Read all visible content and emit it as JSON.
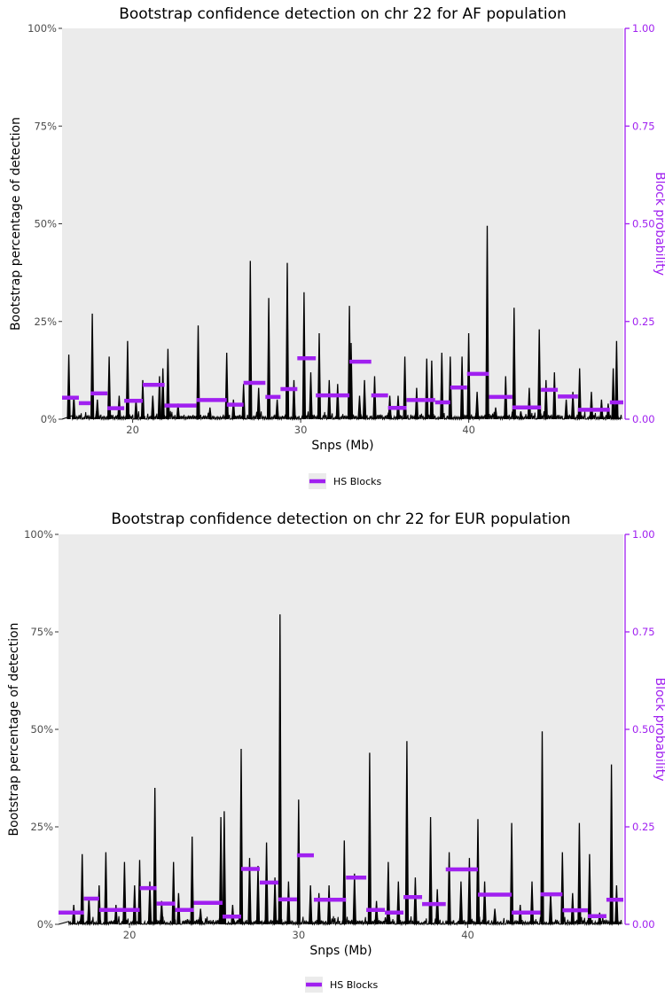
{
  "chart_data": [
    {
      "type": "line",
      "title": "Bootstrap confidence detection on chr 22 for AF population",
      "xlabel": "Snps (Mb)",
      "ylabel": "Bootstrap percentage of detection",
      "y2label": "Block probability",
      "xlim": [
        15.8,
        49.2
      ],
      "xticks": [
        20,
        30,
        40
      ],
      "ylim": [
        0,
        100
      ],
      "yticks": [
        "0%",
        "25%",
        "50%",
        "75%",
        "100%"
      ],
      "y2lim": [
        0,
        1
      ],
      "y2ticks": [
        "0.00",
        "0.25",
        "0.50",
        "0.75",
        "1.00"
      ],
      "legend": {
        "position": "bottom",
        "label": "HS Blocks"
      },
      "colors": {
        "line": "#000000",
        "blocks": "#a020f0",
        "panel": "#ebebeb"
      },
      "series": [
        {
          "values": [
            [
              16.2,
              16.5
            ],
            [
              16.5,
              6
            ],
            [
              17.6,
              27
            ],
            [
              17.9,
              5
            ],
            [
              18.6,
              16
            ],
            [
              19.2,
              6
            ],
            [
              19.7,
              20
            ],
            [
              20.2,
              5
            ],
            [
              20.6,
              10
            ],
            [
              21.2,
              6
            ],
            [
              21.6,
              11
            ],
            [
              21.8,
              13
            ],
            [
              22.1,
              18
            ],
            [
              22.7,
              4
            ],
            [
              23.9,
              24
            ],
            [
              24.6,
              3
            ],
            [
              25.6,
              17
            ],
            [
              26.0,
              5
            ],
            [
              26.6,
              9
            ],
            [
              27.0,
              40.5
            ],
            [
              27.5,
              8
            ],
            [
              28.1,
              31
            ],
            [
              28.6,
              5
            ],
            [
              29.2,
              40
            ],
            [
              29.6,
              10
            ],
            [
              30.2,
              32.5
            ],
            [
              30.6,
              12
            ],
            [
              31.1,
              22
            ],
            [
              31.7,
              10
            ],
            [
              32.2,
              9
            ],
            [
              32.9,
              29
            ],
            [
              33.0,
              19.5
            ],
            [
              33.5,
              6
            ],
            [
              33.8,
              10
            ],
            [
              34.4,
              11
            ],
            [
              35.3,
              6
            ],
            [
              35.8,
              6
            ],
            [
              36.2,
              16
            ],
            [
              36.9,
              8
            ],
            [
              37.5,
              15.5
            ],
            [
              37.8,
              15
            ],
            [
              38.4,
              17
            ],
            [
              38.9,
              16
            ],
            [
              39.6,
              16
            ],
            [
              40.0,
              22
            ],
            [
              40.5,
              7
            ],
            [
              41.1,
              49.5
            ],
            [
              41.6,
              3
            ],
            [
              42.2,
              11
            ],
            [
              42.7,
              28.5
            ],
            [
              43.1,
              2
            ],
            [
              43.6,
              8
            ],
            [
              44.2,
              23
            ],
            [
              44.6,
              10
            ],
            [
              45.1,
              12
            ],
            [
              45.8,
              5
            ],
            [
              46.2,
              7
            ],
            [
              46.6,
              13
            ],
            [
              47.3,
              7
            ],
            [
              47.9,
              5
            ],
            [
              48.3,
              4
            ],
            [
              48.6,
              13
            ],
            [
              48.8,
              20
            ]
          ]
        }
      ],
      "blocks": [
        [
          15.8,
          16.8,
          0.055
        ],
        [
          16.8,
          17.5,
          0.041
        ],
        [
          17.5,
          18.5,
          0.066
        ],
        [
          18.5,
          19.5,
          0.028
        ],
        [
          19.5,
          20.6,
          0.047
        ],
        [
          20.6,
          21.9,
          0.088
        ],
        [
          21.9,
          23.8,
          0.035
        ],
        [
          23.8,
          25.6,
          0.049
        ],
        [
          25.6,
          26.6,
          0.037
        ],
        [
          26.6,
          27.9,
          0.093
        ],
        [
          27.9,
          28.8,
          0.057
        ],
        [
          28.8,
          29.8,
          0.077
        ],
        [
          29.8,
          30.9,
          0.156
        ],
        [
          30.9,
          32.9,
          0.061
        ],
        [
          32.9,
          34.2,
          0.147
        ],
        [
          34.2,
          35.2,
          0.061
        ],
        [
          35.2,
          36.3,
          0.029
        ],
        [
          36.3,
          37.4,
          0.049
        ],
        [
          37.4,
          38.0,
          0.049
        ],
        [
          38.0,
          38.9,
          0.043
        ],
        [
          38.9,
          39.9,
          0.081
        ],
        [
          39.9,
          41.2,
          0.116
        ],
        [
          41.2,
          42.6,
          0.057
        ],
        [
          42.6,
          44.3,
          0.03
        ],
        [
          44.3,
          45.3,
          0.075
        ],
        [
          45.3,
          46.5,
          0.058
        ],
        [
          46.5,
          48.4,
          0.024
        ],
        [
          48.4,
          49.2,
          0.043
        ]
      ]
    },
    {
      "type": "line",
      "title": "Bootstrap confidence detection on chr 22 for EUR population",
      "xlabel": "Snps (Mb)",
      "ylabel": "Bootstrap percentage of detection",
      "y2label": "Block probability",
      "xlim": [
        15.8,
        49.2
      ],
      "xticks": [
        20,
        30,
        40
      ],
      "ylim": [
        0,
        100
      ],
      "yticks": [
        "0%",
        "25%",
        "50%",
        "75%",
        "100%"
      ],
      "y2lim": [
        0,
        1
      ],
      "y2ticks": [
        "0.00",
        "0.25",
        "0.50",
        "0.75",
        "1.00"
      ],
      "legend": {
        "position": "bottom",
        "label": "HS Blocks"
      },
      "colors": {
        "line": "#000000",
        "blocks": "#a020f0",
        "panel": "#ebebeb"
      },
      "series": [
        {
          "values": [
            [
              16.7,
              5
            ],
            [
              17.2,
              18
            ],
            [
              17.6,
              7
            ],
            [
              18.2,
              10
            ],
            [
              18.6,
              18.5
            ],
            [
              19.2,
              5
            ],
            [
              19.7,
              16
            ],
            [
              20.3,
              10
            ],
            [
              20.6,
              16.5
            ],
            [
              21.2,
              11
            ],
            [
              21.5,
              35
            ],
            [
              21.9,
              6
            ],
            [
              22.6,
              16
            ],
            [
              22.9,
              8
            ],
            [
              23.7,
              22.5
            ],
            [
              24.2,
              4
            ],
            [
              25.4,
              27.5
            ],
            [
              25.6,
              29
            ],
            [
              26.1,
              5
            ],
            [
              26.6,
              45
            ],
            [
              27.1,
              17
            ],
            [
              27.6,
              15
            ],
            [
              28.1,
              21
            ],
            [
              28.6,
              12
            ],
            [
              28.9,
              79.5
            ],
            [
              29.4,
              11
            ],
            [
              30.0,
              32
            ],
            [
              30.7,
              10
            ],
            [
              31.2,
              8
            ],
            [
              31.8,
              10
            ],
            [
              32.7,
              21.5
            ],
            [
              33.3,
              13
            ],
            [
              34.2,
              44
            ],
            [
              34.6,
              6
            ],
            [
              35.3,
              16
            ],
            [
              35.9,
              11
            ],
            [
              36.4,
              47
            ],
            [
              36.9,
              12
            ],
            [
              37.8,
              27.5
            ],
            [
              38.2,
              9
            ],
            [
              38.9,
              18.5
            ],
            [
              39.6,
              11
            ],
            [
              40.1,
              17
            ],
            [
              40.6,
              27
            ],
            [
              41.0,
              11
            ],
            [
              41.6,
              4
            ],
            [
              42.6,
              26
            ],
            [
              43.1,
              5
            ],
            [
              43.8,
              11
            ],
            [
              44.4,
              49.5
            ],
            [
              44.9,
              8
            ],
            [
              45.6,
              18.5
            ],
            [
              46.2,
              8
            ],
            [
              46.6,
              26
            ],
            [
              47.2,
              18
            ],
            [
              47.8,
              3
            ],
            [
              48.5,
              41
            ],
            [
              48.8,
              10
            ]
          ]
        }
      ],
      "blocks": [
        [
          15.8,
          17.3,
          0.03
        ],
        [
          17.3,
          18.2,
          0.066
        ],
        [
          18.2,
          20.6,
          0.037
        ],
        [
          20.6,
          21.6,
          0.093
        ],
        [
          21.6,
          22.7,
          0.053
        ],
        [
          22.7,
          23.8,
          0.037
        ],
        [
          23.8,
          25.5,
          0.055
        ],
        [
          25.5,
          26.6,
          0.02
        ],
        [
          26.6,
          27.7,
          0.142
        ],
        [
          27.7,
          28.8,
          0.107
        ],
        [
          28.8,
          29.9,
          0.064
        ],
        [
          29.9,
          30.9,
          0.177
        ],
        [
          30.9,
          32.8,
          0.063
        ],
        [
          32.8,
          34.0,
          0.12
        ],
        [
          34.0,
          35.1,
          0.037
        ],
        [
          35.1,
          36.2,
          0.03
        ],
        [
          36.2,
          37.3,
          0.07
        ],
        [
          37.3,
          38.7,
          0.052
        ],
        [
          38.7,
          40.6,
          0.141
        ],
        [
          40.6,
          42.6,
          0.076
        ],
        [
          42.6,
          44.3,
          0.03
        ],
        [
          44.3,
          45.6,
          0.077
        ],
        [
          45.6,
          47.1,
          0.036
        ],
        [
          47.1,
          48.2,
          0.021
        ],
        [
          48.2,
          49.2,
          0.063
        ]
      ]
    }
  ]
}
